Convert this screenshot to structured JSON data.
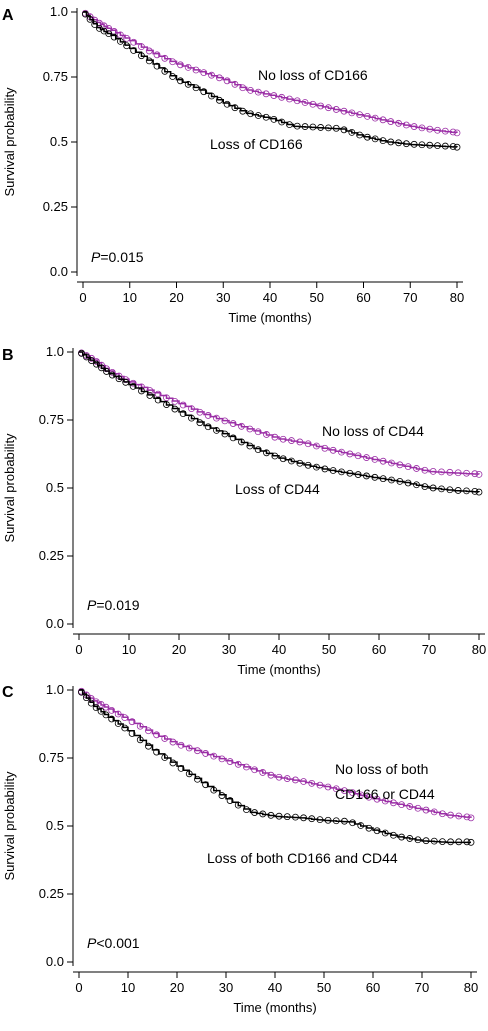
{
  "colors": {
    "no_loss": "#9b2fa6",
    "loss": "#000000",
    "axis": "#000000"
  },
  "chart_data": [
    {
      "type": "line",
      "panel": "A",
      "xlabel": "Time (months)",
      "ylabel": "Survival probability",
      "xlim": [
        0,
        80
      ],
      "ylim": [
        0,
        1
      ],
      "x_ticks": [
        "0",
        "10",
        "20",
        "30",
        "40",
        "50",
        "60",
        "70",
        "80"
      ],
      "y_ticks": [
        "0.0",
        "0.25",
        "0.5",
        "0.75",
        "1.0"
      ],
      "p_prefix": "P",
      "p_text": "=0.015",
      "series": [
        {
          "name": "No loss of CD166",
          "color": "#9b2fa6",
          "x": [
            0,
            3,
            6,
            10,
            15,
            20,
            25,
            30,
            35,
            40,
            45,
            50,
            55,
            60,
            65,
            70,
            75,
            80
          ],
          "y": [
            1.0,
            0.96,
            0.93,
            0.89,
            0.84,
            0.8,
            0.77,
            0.74,
            0.7,
            0.68,
            0.66,
            0.64,
            0.62,
            0.6,
            0.58,
            0.56,
            0.545,
            0.535
          ]
        },
        {
          "name": "Loss of CD166",
          "color": "#000000",
          "x": [
            0,
            3,
            6,
            10,
            15,
            20,
            25,
            30,
            35,
            40,
            45,
            50,
            55,
            60,
            65,
            70,
            75,
            80
          ],
          "y": [
            1.0,
            0.94,
            0.91,
            0.86,
            0.8,
            0.74,
            0.7,
            0.65,
            0.61,
            0.59,
            0.56,
            0.555,
            0.55,
            0.52,
            0.5,
            0.49,
            0.485,
            0.48
          ]
        }
      ]
    },
    {
      "type": "line",
      "panel": "B",
      "xlabel": "Time (months)",
      "ylabel": "Survival probability",
      "xlim": [
        0,
        80
      ],
      "ylim": [
        0,
        1
      ],
      "x_ticks": [
        "0",
        "10",
        "20",
        "30",
        "40",
        "50",
        "60",
        "70",
        "80"
      ],
      "y_ticks": [
        "0.0",
        "0.25",
        "0.5",
        "0.75",
        "1.0"
      ],
      "p_prefix": "P",
      "p_text": "=0.019",
      "series": [
        {
          "name": "No loss of CD44",
          "color": "#9b2fa6",
          "x": [
            0,
            3,
            6,
            10,
            15,
            20,
            25,
            30,
            35,
            40,
            45,
            50,
            55,
            60,
            65,
            70,
            75,
            80
          ],
          "y": [
            1.0,
            0.97,
            0.93,
            0.89,
            0.85,
            0.81,
            0.77,
            0.74,
            0.71,
            0.68,
            0.665,
            0.64,
            0.62,
            0.6,
            0.58,
            0.56,
            0.555,
            0.55
          ]
        },
        {
          "name": "Loss of CD44",
          "color": "#000000",
          "x": [
            0,
            3,
            6,
            10,
            15,
            20,
            25,
            30,
            35,
            40,
            45,
            50,
            55,
            60,
            65,
            70,
            75,
            80
          ],
          "y": [
            1.0,
            0.96,
            0.92,
            0.88,
            0.83,
            0.78,
            0.73,
            0.69,
            0.645,
            0.61,
            0.585,
            0.565,
            0.55,
            0.535,
            0.52,
            0.5,
            0.49,
            0.485
          ]
        }
      ]
    },
    {
      "type": "line",
      "panel": "C",
      "xlabel": "Time (months)",
      "ylabel": "Survival probability",
      "xlim": [
        0,
        80
      ],
      "ylim": [
        0,
        1
      ],
      "x_ticks": [
        "0",
        "10",
        "20",
        "30",
        "40",
        "50",
        "60",
        "70",
        "80"
      ],
      "y_ticks": [
        "0.0",
        "0.25",
        "0.5",
        "0.75",
        "1.0"
      ],
      "p_prefix": "P",
      "p_text": "<0.001",
      "series": [
        {
          "name": "No loss of both CD166 or CD44",
          "color": "#9b2fa6",
          "x": [
            0,
            3,
            6,
            10,
            15,
            20,
            25,
            30,
            35,
            40,
            45,
            50,
            55,
            60,
            65,
            70,
            75,
            80
          ],
          "y": [
            1.0,
            0.96,
            0.93,
            0.89,
            0.84,
            0.8,
            0.77,
            0.74,
            0.71,
            0.68,
            0.665,
            0.645,
            0.625,
            0.6,
            0.58,
            0.56,
            0.54,
            0.53
          ]
        },
        {
          "name": "Loss of both CD166 and CD44",
          "color": "#000000",
          "x": [
            0,
            3,
            6,
            10,
            15,
            20,
            25,
            30,
            35,
            40,
            45,
            50,
            55,
            60,
            65,
            70,
            75,
            80
          ],
          "y": [
            1.0,
            0.94,
            0.9,
            0.85,
            0.78,
            0.72,
            0.66,
            0.6,
            0.55,
            0.535,
            0.53,
            0.52,
            0.515,
            0.485,
            0.46,
            0.445,
            0.44,
            0.44
          ]
        }
      ]
    }
  ],
  "annotations": {
    "A": {
      "no_loss": [
        "No loss of CD166"
      ],
      "loss": [
        "Loss of CD166"
      ]
    },
    "B": {
      "no_loss": [
        "No loss of CD44"
      ],
      "loss": [
        "Loss of CD44"
      ]
    },
    "C": {
      "no_loss": [
        "No loss of both",
        "CD166 or CD44"
      ],
      "loss": [
        "Loss of both CD166 and CD44"
      ]
    }
  }
}
